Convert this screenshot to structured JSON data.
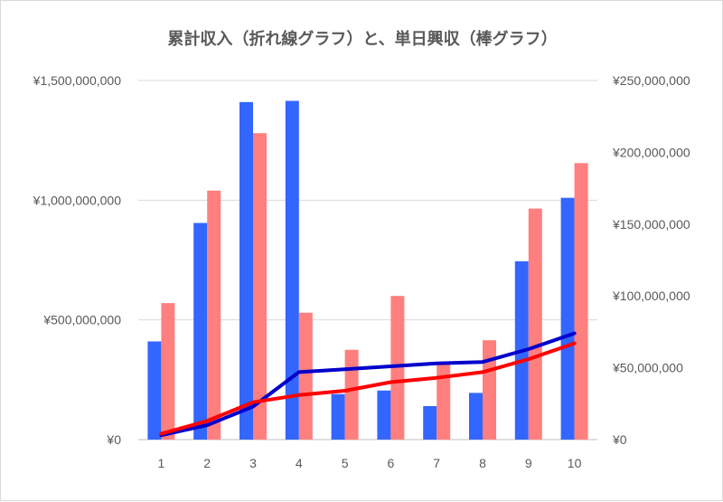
{
  "chart_data": {
    "type": "bar",
    "title": "累計収入（折れ線グラフ）と、単日興収（棒グラフ）",
    "categories": [
      "1",
      "2",
      "3",
      "4",
      "5",
      "6",
      "7",
      "8",
      "9",
      "10"
    ],
    "left_axis": {
      "range": [
        0,
        1500000000
      ],
      "ticks": [
        0,
        500000000,
        1000000000,
        1500000000
      ],
      "tick_labels": [
        "¥0",
        "¥500,000,000",
        "¥1,000,000,000",
        "¥1,500,000,000"
      ]
    },
    "right_axis": {
      "range": [
        0,
        250000000
      ],
      "ticks": [
        0,
        50000000,
        100000000,
        150000000,
        200000000,
        250000000
      ],
      "tick_labels": [
        "¥0",
        "¥50,000,000",
        "¥100,000,000",
        "¥150,000,000",
        "¥200,000,000",
        "¥250,000,000"
      ]
    },
    "grid": true,
    "legend": "none",
    "bar_series": [
      {
        "axis": "left",
        "color": "#3366ff",
        "values": [
          410000000,
          905000000,
          1410000000,
          1415000000,
          190000000,
          205000000,
          140000000,
          195000000,
          745000000,
          1010000000
        ]
      },
      {
        "axis": "left",
        "color": "#ff7f7f",
        "values": [
          570000000,
          1040000000,
          1280000000,
          530000000,
          375000000,
          600000000,
          325000000,
          415000000,
          965000000,
          1155000000
        ]
      }
    ],
    "line_series": [
      {
        "axis": "right",
        "color": "#0000cc",
        "values": [
          3000000,
          10000000,
          23000000,
          47000000,
          49000000,
          51000000,
          53000000,
          54000000,
          63000000,
          74000000
        ]
      },
      {
        "axis": "right",
        "color": "#ff0000",
        "values": [
          4000000,
          13000000,
          26000000,
          31000000,
          34000000,
          40000000,
          43000000,
          47000000,
          56000000,
          67000000
        ]
      }
    ]
  }
}
